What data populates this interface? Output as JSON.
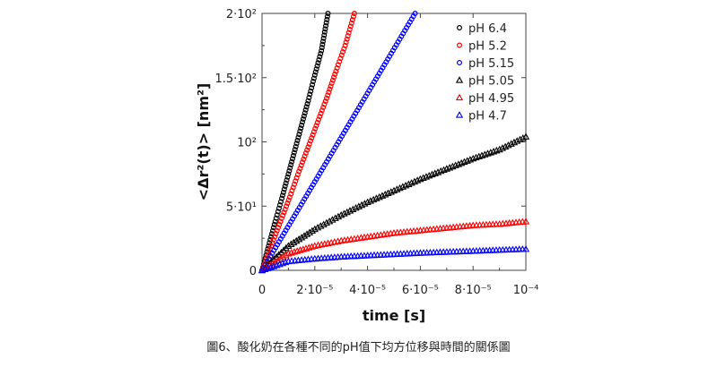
{
  "chart_data": {
    "type": "scatter",
    "xlabel": "time [s]",
    "ylabel": "<Δr²(t)> [nm²]",
    "xlim": [
      0,
      0.0001
    ],
    "ylim": [
      0,
      200
    ],
    "x_ticks": [
      0,
      2e-05,
      4e-05,
      6e-05,
      8e-05,
      0.0001
    ],
    "x_tick_labels": [
      "0",
      "2·10⁻⁵",
      "4·10⁻⁵",
      "6·10⁻⁵",
      "8·10⁻⁵",
      "10⁻⁴"
    ],
    "y_ticks": [
      0,
      50,
      100,
      150,
      200
    ],
    "y_tick_labels": [
      "0",
      "5·10¹",
      "10²",
      "1.5·10²",
      "2·10²"
    ],
    "legend_position": "top-right",
    "grid": false,
    "series": [
      {
        "name": "pH 6.4",
        "marker": "circle",
        "color": "#000000",
        "x": [
          0,
          2.5e-06,
          5e-06,
          7.5e-06,
          1e-05,
          1.25e-05,
          1.5e-05,
          1.75e-05,
          2e-05,
          2.25e-05,
          2.5e-05
        ],
        "y": [
          0,
          19,
          38,
          56,
          75,
          94,
          113,
          132,
          152,
          171,
          200
        ]
      },
      {
        "name": "pH 5.2",
        "marker": "circle",
        "color": "#ff0000",
        "x": [
          0,
          3.5e-06,
          7e-06,
          1.05e-05,
          1.4e-05,
          1.75e-05,
          2.1e-05,
          2.45e-05,
          2.8e-05,
          3.15e-05,
          3.5e-05
        ],
        "y": [
          0,
          19,
          38,
          57,
          77,
          96,
          115,
          134,
          155,
          175,
          200
        ]
      },
      {
        "name": "pH 5.15",
        "marker": "circle",
        "color": "#0000ff",
        "x": [
          0,
          5.8e-06,
          1.16e-05,
          1.74e-05,
          2.32e-05,
          2.9e-05,
          3.48e-05,
          4.06e-05,
          4.64e-05,
          5.22e-05,
          5.8e-05
        ],
        "y": [
          0,
          20,
          40,
          60,
          80,
          100,
          120,
          140,
          160,
          180,
          200
        ]
      },
      {
        "name": "pH 5.05",
        "marker": "triangle",
        "color": "#000000",
        "x": [
          0,
          1e-05,
          2e-05,
          3e-05,
          4e-05,
          5e-05,
          6e-05,
          7e-05,
          8e-05,
          9e-05,
          0.0001
        ],
        "y": [
          0,
          19,
          32,
          43,
          53,
          62,
          71,
          79,
          87,
          94,
          104
        ]
      },
      {
        "name": "pH 4.95",
        "marker": "triangle",
        "color": "#ff0000",
        "x": [
          0,
          1e-05,
          2e-05,
          3e-05,
          4e-05,
          5e-05,
          6e-05,
          7e-05,
          8e-05,
          9e-05,
          0.0001
        ],
        "y": [
          0,
          13,
          19,
          23,
          26,
          29,
          31,
          33,
          35,
          36,
          38
        ]
      },
      {
        "name": "pH 4.7",
        "marker": "triangle",
        "color": "#0000ff",
        "x": [
          0,
          1e-05,
          2e-05,
          3e-05,
          4e-05,
          5e-05,
          6e-05,
          7e-05,
          8e-05,
          9e-05,
          0.0001
        ],
        "y": [
          0,
          7,
          9,
          10.5,
          11.5,
          12.5,
          13.5,
          14.3,
          15,
          15.8,
          16.5
        ]
      }
    ]
  },
  "caption": "圖6、酸化奶在各種不同的pH值下均方位移與時間的關係圖"
}
